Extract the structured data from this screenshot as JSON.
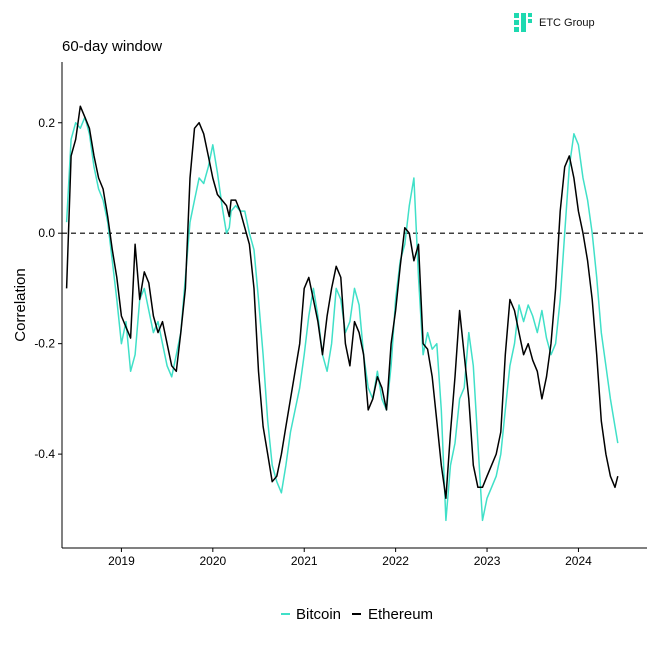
{
  "brand": {
    "name": "ETC Group",
    "color": "#1ED9B0"
  },
  "colors": {
    "bitcoin": "#40E0C8",
    "ethereum": "#000000",
    "zero_line": "#000000"
  },
  "chart_data": {
    "type": "line",
    "title": "60-day window",
    "xlabel": "",
    "ylabel": "Correlation",
    "xlim": [
      2018.35,
      2024.75
    ],
    "ylim": [
      -0.57,
      0.31
    ],
    "y_ticks": [
      0.2,
      0.0,
      -0.2,
      -0.4
    ],
    "y_tick_labels": [
      "0.2",
      "0.0",
      "-0.2",
      "-0.4"
    ],
    "x_ticks": [
      2019,
      2020,
      2021,
      2022,
      2023,
      2024
    ],
    "x_tick_labels": [
      "2019",
      "2020",
      "2021",
      "2022",
      "2023",
      "2024"
    ],
    "reference_line": {
      "y": 0.0,
      "style": "dashed"
    },
    "legend": {
      "position": "bottom",
      "entries": [
        "Bitcoin",
        "Ethereum"
      ]
    },
    "series": [
      {
        "name": "Bitcoin",
        "x": [
          2018.4,
          2018.45,
          2018.5,
          2018.55,
          2018.6,
          2018.65,
          2018.7,
          2018.75,
          2018.8,
          2018.85,
          2018.9,
          2018.95,
          2019.0,
          2019.05,
          2019.1,
          2019.15,
          2019.2,
          2019.25,
          2019.3,
          2019.35,
          2019.4,
          2019.45,
          2019.5,
          2019.55,
          2019.6,
          2019.65,
          2019.7,
          2019.75,
          2019.8,
          2019.85,
          2019.9,
          2019.95,
          2020.0,
          2020.05,
          2020.1,
          2020.15,
          2020.18,
          2020.2,
          2020.25,
          2020.3,
          2020.35,
          2020.4,
          2020.45,
          2020.5,
          2020.55,
          2020.6,
          2020.65,
          2020.7,
          2020.75,
          2020.8,
          2020.85,
          2020.9,
          2020.95,
          2021.0,
          2021.05,
          2021.1,
          2021.15,
          2021.2,
          2021.25,
          2021.3,
          2021.35,
          2021.4,
          2021.45,
          2021.5,
          2021.55,
          2021.6,
          2021.65,
          2021.7,
          2021.75,
          2021.8,
          2021.85,
          2021.9,
          2021.95,
          2022.0,
          2022.05,
          2022.1,
          2022.15,
          2022.2,
          2022.25,
          2022.3,
          2022.35,
          2022.4,
          2022.45,
          2022.5,
          2022.55,
          2022.6,
          2022.65,
          2022.7,
          2022.75,
          2022.8,
          2022.85,
          2022.9,
          2022.95,
          2023.0,
          2023.05,
          2023.1,
          2023.15,
          2023.2,
          2023.25,
          2023.3,
          2023.35,
          2023.4,
          2023.45,
          2023.5,
          2023.55,
          2023.6,
          2023.65,
          2023.7,
          2023.75,
          2023.8,
          2023.85,
          2023.9,
          2023.95,
          2024.0,
          2024.05,
          2024.1,
          2024.15,
          2024.2,
          2024.25,
          2024.3,
          2024.35,
          2024.4,
          2024.43
        ],
        "y": [
          0.02,
          0.17,
          0.2,
          0.19,
          0.21,
          0.18,
          0.12,
          0.08,
          0.06,
          0.02,
          -0.05,
          -0.12,
          -0.2,
          -0.16,
          -0.25,
          -0.22,
          -0.12,
          -0.1,
          -0.14,
          -0.18,
          -0.16,
          -0.2,
          -0.24,
          -0.26,
          -0.22,
          -0.18,
          -0.08,
          0.02,
          0.06,
          0.1,
          0.09,
          0.12,
          0.16,
          0.11,
          0.05,
          0.0,
          0.01,
          0.04,
          0.05,
          0.04,
          0.04,
          0.0,
          -0.03,
          -0.12,
          -0.22,
          -0.34,
          -0.42,
          -0.45,
          -0.47,
          -0.42,
          -0.36,
          -0.32,
          -0.28,
          -0.22,
          -0.15,
          -0.1,
          -0.15,
          -0.22,
          -0.25,
          -0.2,
          -0.1,
          -0.12,
          -0.18,
          -0.16,
          -0.1,
          -0.13,
          -0.22,
          -0.28,
          -0.3,
          -0.25,
          -0.3,
          -0.32,
          -0.24,
          -0.12,
          -0.05,
          -0.02,
          0.05,
          0.1,
          -0.08,
          -0.22,
          -0.18,
          -0.21,
          -0.2,
          -0.32,
          -0.52,
          -0.42,
          -0.38,
          -0.3,
          -0.28,
          -0.18,
          -0.24,
          -0.38,
          -0.52,
          -0.48,
          -0.46,
          -0.44,
          -0.4,
          -0.32,
          -0.24,
          -0.2,
          -0.13,
          -0.16,
          -0.13,
          -0.15,
          -0.18,
          -0.14,
          -0.19,
          -0.22,
          -0.2,
          -0.12,
          0.0,
          0.12,
          0.18,
          0.16,
          0.1,
          0.06,
          0.0,
          -0.08,
          -0.18,
          -0.24,
          -0.3,
          -0.35,
          -0.38
        ]
      },
      {
        "name": "Ethereum",
        "x": [
          2018.4,
          2018.45,
          2018.5,
          2018.55,
          2018.6,
          2018.65,
          2018.7,
          2018.75,
          2018.8,
          2018.85,
          2018.9,
          2018.95,
          2019.0,
          2019.05,
          2019.1,
          2019.15,
          2019.2,
          2019.25,
          2019.3,
          2019.35,
          2019.4,
          2019.45,
          2019.5,
          2019.55,
          2019.6,
          2019.65,
          2019.7,
          2019.75,
          2019.8,
          2019.85,
          2019.9,
          2019.95,
          2020.0,
          2020.05,
          2020.1,
          2020.15,
          2020.18,
          2020.2,
          2020.25,
          2020.3,
          2020.35,
          2020.4,
          2020.45,
          2020.5,
          2020.55,
          2020.6,
          2020.65,
          2020.7,
          2020.75,
          2020.8,
          2020.85,
          2020.9,
          2020.95,
          2021.0,
          2021.05,
          2021.1,
          2021.15,
          2021.2,
          2021.25,
          2021.3,
          2021.35,
          2021.4,
          2021.45,
          2021.5,
          2021.55,
          2021.6,
          2021.65,
          2021.7,
          2021.75,
          2021.8,
          2021.85,
          2021.9,
          2021.95,
          2022.0,
          2022.05,
          2022.1,
          2022.15,
          2022.2,
          2022.25,
          2022.3,
          2022.35,
          2022.4,
          2022.45,
          2022.5,
          2022.55,
          2022.6,
          2022.65,
          2022.7,
          2022.75,
          2022.8,
          2022.85,
          2022.9,
          2022.95,
          2023.0,
          2023.05,
          2023.1,
          2023.15,
          2023.2,
          2023.25,
          2023.3,
          2023.35,
          2023.4,
          2023.45,
          2023.5,
          2023.55,
          2023.6,
          2023.65,
          2023.7,
          2023.75,
          2023.8,
          2023.85,
          2023.9,
          2023.95,
          2024.0,
          2024.05,
          2024.1,
          2024.15,
          2024.2,
          2024.25,
          2024.3,
          2024.35,
          2024.4,
          2024.43
        ],
        "y": [
          -0.1,
          0.14,
          0.17,
          0.23,
          0.21,
          0.19,
          0.14,
          0.1,
          0.08,
          0.03,
          -0.03,
          -0.08,
          -0.15,
          -0.17,
          -0.19,
          -0.02,
          -0.12,
          -0.07,
          -0.09,
          -0.15,
          -0.18,
          -0.16,
          -0.2,
          -0.24,
          -0.25,
          -0.18,
          -0.1,
          0.1,
          0.19,
          0.2,
          0.18,
          0.14,
          0.1,
          0.07,
          0.06,
          0.05,
          0.03,
          0.06,
          0.06,
          0.04,
          0.01,
          -0.02,
          -0.1,
          -0.25,
          -0.35,
          -0.4,
          -0.45,
          -0.44,
          -0.4,
          -0.35,
          -0.3,
          -0.25,
          -0.2,
          -0.1,
          -0.08,
          -0.12,
          -0.16,
          -0.22,
          -0.15,
          -0.1,
          -0.06,
          -0.08,
          -0.2,
          -0.24,
          -0.16,
          -0.18,
          -0.22,
          -0.32,
          -0.3,
          -0.26,
          -0.28,
          -0.32,
          -0.2,
          -0.14,
          -0.06,
          0.01,
          0.0,
          -0.05,
          -0.02,
          -0.2,
          -0.21,
          -0.26,
          -0.34,
          -0.42,
          -0.48,
          -0.36,
          -0.26,
          -0.14,
          -0.22,
          -0.3,
          -0.42,
          -0.46,
          -0.46,
          -0.44,
          -0.42,
          -0.4,
          -0.36,
          -0.22,
          -0.12,
          -0.14,
          -0.18,
          -0.22,
          -0.2,
          -0.23,
          -0.25,
          -0.3,
          -0.26,
          -0.2,
          -0.1,
          0.04,
          0.12,
          0.14,
          0.1,
          0.04,
          0.0,
          -0.05,
          -0.12,
          -0.22,
          -0.34,
          -0.4,
          -0.44,
          -0.46,
          -0.44
        ]
      }
    ]
  }
}
